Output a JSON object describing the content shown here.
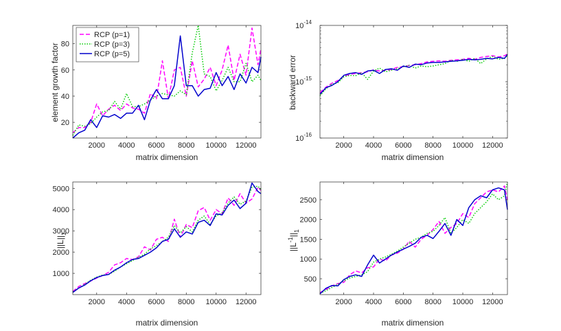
{
  "figure": {
    "background": "#ffffff"
  },
  "chart_data": [
    {
      "id": "growth",
      "type": "line",
      "xlabel": "matrix dimension",
      "ylabel": "element growth factor",
      "xlim": [
        400,
        13000
      ],
      "ylim": [
        8,
        94
      ],
      "yscale": "linear",
      "xticks": [
        2000,
        4000,
        6000,
        8000,
        10000,
        12000
      ],
      "xtick_labels": [
        "2000",
        "4000",
        "6000",
        "8000",
        "10000",
        "12000"
      ],
      "yticks": [
        20,
        40,
        60,
        80
      ],
      "ytick_labels": [
        "20",
        "40",
        "60",
        "80"
      ],
      "legend": {
        "position": "top-left",
        "entries": [
          "RCP (p=1)",
          "RCP (p=3)",
          "RCP (p=5)"
        ]
      },
      "series": [
        {
          "name": "RCP (p=1)",
          "color": "#ff00ff",
          "dash": "dashed",
          "x": [
            400,
            800,
            1200,
            1600,
            2000,
            2400,
            2800,
            3200,
            3600,
            4000,
            4400,
            4800,
            5200,
            5600,
            6000,
            6400,
            6800,
            7200,
            7600,
            8000,
            8400,
            8800,
            9200,
            9600,
            10000,
            10400,
            10800,
            11200,
            11600,
            12000,
            12400,
            12800,
            13000
          ],
          "values": [
            12,
            16,
            16,
            20,
            34,
            25,
            30,
            33,
            29,
            34,
            31,
            30,
            27,
            42,
            38,
            67,
            38,
            60,
            62,
            40,
            67,
            47,
            53,
            62,
            48,
            60,
            79,
            52,
            72,
            56,
            92,
            64,
            76
          ]
        },
        {
          "name": "RCP (p=3)",
          "color": "#00cc00",
          "dash": "dotted",
          "x": [
            400,
            800,
            1200,
            1600,
            2000,
            2400,
            2800,
            3200,
            3600,
            4000,
            4400,
            4800,
            5200,
            5600,
            6000,
            6400,
            6800,
            7200,
            7600,
            8000,
            8400,
            8800,
            9200,
            9600,
            10000,
            10400,
            10800,
            11200,
            11600,
            12000,
            12400,
            12800,
            13000
          ],
          "values": [
            10,
            18,
            17,
            19,
            24,
            28,
            29,
            36,
            30,
            42,
            32,
            32,
            34,
            37,
            40,
            42,
            41,
            40,
            44,
            41,
            73,
            94,
            57,
            55,
            44,
            52,
            62,
            51,
            51,
            65,
            51,
            56,
            52
          ]
        },
        {
          "name": "RCP (p=5)",
          "color": "#0000cc",
          "dash": "solid",
          "x": [
            400,
            800,
            1200,
            1600,
            2000,
            2400,
            2800,
            3200,
            3600,
            4000,
            4400,
            4800,
            5200,
            5600,
            6000,
            6400,
            6800,
            7200,
            7600,
            8000,
            8400,
            8800,
            9200,
            9600,
            10000,
            10400,
            10800,
            11200,
            11600,
            12000,
            12400,
            12800,
            13000
          ],
          "values": [
            8,
            12,
            14,
            22,
            16,
            25,
            24,
            26,
            23,
            27,
            27,
            33,
            22,
            37,
            45,
            38,
            38,
            48,
            86,
            48,
            48,
            40,
            45,
            46,
            58,
            48,
            55,
            45,
            57,
            50,
            62,
            58,
            70
          ]
        }
      ]
    },
    {
      "id": "backward",
      "type": "line",
      "xlabel": "matrix dimension",
      "ylabel": "backward error",
      "xlim": [
        400,
        13000
      ],
      "ylim": [
        1e-16,
        1e-14
      ],
      "yscale": "log",
      "xticks": [
        2000,
        4000,
        6000,
        8000,
        10000,
        12000
      ],
      "xtick_labels": [
        "2000",
        "4000",
        "6000",
        "8000",
        "10000",
        "12000"
      ],
      "yticks": [
        1e-16,
        1e-15,
        1e-14
      ],
      "ytick_bases": [
        "10",
        "10",
        "10"
      ],
      "ytick_exponents": [
        "-16",
        "-15",
        "-14"
      ],
      "series": [
        {
          "name": "RCP (p=1)",
          "color": "#ff00ff",
          "dash": "dashed",
          "x": [
            400,
            800,
            1200,
            1600,
            2000,
            2400,
            2800,
            3200,
            3600,
            4000,
            4400,
            4800,
            5200,
            5600,
            6000,
            6400,
            6800,
            7200,
            7600,
            8000,
            8400,
            8800,
            9200,
            9600,
            10000,
            10400,
            10800,
            11200,
            11600,
            12000,
            12400,
            12800,
            13000
          ],
          "values": [
            6.4e-16,
            8e-16,
            9.4e-16,
            1.05e-15,
            1.25e-15,
            1.35e-15,
            1.4e-15,
            1.45e-15,
            1.5e-15,
            1.62e-15,
            1.55e-15,
            1.6e-15,
            1.65e-15,
            1.8e-15,
            1.85e-15,
            1.95e-15,
            2e-15,
            2.1e-15,
            2.25e-15,
            2.3e-15,
            2.35e-15,
            2.3e-15,
            2.4e-15,
            2.45e-15,
            2.5e-15,
            2.6e-15,
            2.5e-15,
            2.7e-15,
            2.8e-15,
            2.9e-15,
            2.75e-15,
            2.9e-15,
            3.1e-15
          ]
        },
        {
          "name": "RCP (p=3)",
          "color": "#00cc00",
          "dash": "dotted",
          "x": [
            400,
            800,
            1200,
            1600,
            2000,
            2400,
            2800,
            3200,
            3600,
            4000,
            4400,
            4800,
            5200,
            5600,
            6000,
            6400,
            6800,
            7200,
            7600,
            8000,
            8400,
            8800,
            9200,
            9600,
            10000,
            10400,
            10800,
            11200,
            11600,
            12000,
            12400,
            12800,
            13000
          ],
          "values": [
            5.6e-16,
            7.5e-16,
            9e-16,
            9.6e-16,
            1.22e-15,
            1.3e-15,
            1.28e-15,
            1.45e-15,
            1.1e-15,
            1.55e-15,
            1.75e-15,
            1.5e-15,
            1.6e-15,
            1.7e-15,
            1.85e-15,
            1.95e-15,
            1.75e-15,
            1.9e-15,
            1.85e-15,
            1.9e-15,
            2e-15,
            2.1e-15,
            2.4e-15,
            2.3e-15,
            2.5e-15,
            2.3e-15,
            2.6e-15,
            2.1e-15,
            2.55e-15,
            2.8e-15,
            2.5e-15,
            2.6e-15,
            2.9e-15
          ]
        },
        {
          "name": "RCP (p=5)",
          "color": "#0000cc",
          "dash": "solid",
          "x": [
            400,
            800,
            1200,
            1600,
            2000,
            2400,
            2800,
            3200,
            3600,
            4000,
            4400,
            4800,
            5200,
            5600,
            6000,
            6400,
            6800,
            7200,
            7600,
            8000,
            8400,
            8800,
            9200,
            9600,
            10000,
            10400,
            10800,
            11200,
            11600,
            12000,
            12400,
            12800,
            13000
          ],
          "values": [
            6e-16,
            7.8e-16,
            8.6e-16,
            1e-15,
            1.3e-15,
            1.4e-15,
            1.45e-15,
            1.35e-15,
            1.55e-15,
            1.6e-15,
            1.4e-15,
            1.65e-15,
            1.7e-15,
            1.6e-15,
            1.9e-15,
            1.8e-15,
            2.05e-15,
            2e-15,
            2.15e-15,
            2.2e-15,
            2.2e-15,
            2.25e-15,
            2.3e-15,
            2.35e-15,
            2.4e-15,
            2.5e-15,
            2.45e-15,
            2.5e-15,
            2.6e-15,
            2.55e-15,
            2.7e-15,
            2.6e-15,
            3.05e-15
          ]
        }
      ]
    },
    {
      "id": "normL",
      "type": "line",
      "xlabel": "matrix dimension",
      "ylabel_main": "||L||",
      "ylabel_sub": "1",
      "xlim": [
        400,
        13000
      ],
      "ylim": [
        0,
        5300
      ],
      "yscale": "linear",
      "xticks": [
        2000,
        4000,
        6000,
        8000,
        10000,
        12000
      ],
      "xtick_labels": [
        "2000",
        "4000",
        "6000",
        "8000",
        "10000",
        "12000"
      ],
      "yticks": [
        1000,
        2000,
        3000,
        4000,
        5000
      ],
      "ytick_labels": [
        "1000",
        "2000",
        "3000",
        "4000",
        "5000"
      ],
      "series": [
        {
          "name": "RCP (p=1)",
          "color": "#ff00ff",
          "dash": "dashed",
          "x": [
            400,
            800,
            1200,
            1600,
            2000,
            2400,
            2800,
            3200,
            3600,
            4000,
            4400,
            4800,
            5200,
            5600,
            6000,
            6400,
            6800,
            7200,
            7600,
            8000,
            8400,
            8800,
            9200,
            9600,
            10000,
            10400,
            10800,
            11200,
            11600,
            12000,
            12400,
            12800,
            13000
          ],
          "values": [
            150,
            380,
            520,
            640,
            780,
            900,
            1050,
            1400,
            1500,
            1700,
            1650,
            1780,
            2250,
            2100,
            2600,
            2700,
            2500,
            3550,
            2700,
            3300,
            3150,
            3950,
            4100,
            3500,
            4000,
            3800,
            4550,
            4200,
            4750,
            4300,
            4500,
            5050,
            4900
          ]
        },
        {
          "name": "RCP (p=3)",
          "color": "#00cc00",
          "dash": "dotted",
          "x": [
            400,
            800,
            1200,
            1600,
            2000,
            2400,
            2800,
            3200,
            3600,
            4000,
            4400,
            4800,
            5200,
            5600,
            6000,
            6400,
            6800,
            7200,
            7600,
            8000,
            8400,
            8800,
            9200,
            9600,
            10000,
            10400,
            10800,
            11200,
            11600,
            12000,
            12400,
            12800,
            13000
          ],
          "values": [
            130,
            300,
            480,
            680,
            820,
            920,
            950,
            1100,
            1300,
            1450,
            1600,
            1750,
            1900,
            2150,
            2300,
            2500,
            2700,
            3250,
            2900,
            3200,
            2950,
            3500,
            3700,
            3300,
            3700,
            3850,
            4300,
            4600,
            4250,
            4400,
            5050,
            5100,
            4950
          ]
        },
        {
          "name": "RCP (p=5)",
          "color": "#0000cc",
          "dash": "solid",
          "x": [
            400,
            800,
            1200,
            1600,
            2000,
            2400,
            2800,
            3200,
            3600,
            4000,
            4400,
            4800,
            5200,
            5600,
            6000,
            6400,
            6800,
            7200,
            7600,
            8000,
            8400,
            8800,
            9200,
            9600,
            10000,
            10400,
            10800,
            11200,
            11600,
            12000,
            12400,
            12800,
            13000
          ],
          "values": [
            100,
            310,
            450,
            650,
            800,
            900,
            950,
            1150,
            1300,
            1500,
            1650,
            1700,
            1850,
            2000,
            2200,
            2500,
            2600,
            3100,
            2700,
            2950,
            2850,
            3400,
            3500,
            3250,
            3800,
            3750,
            4200,
            4450,
            4050,
            4300,
            5250,
            4850,
            4750
          ]
        }
      ]
    },
    {
      "id": "normLinv",
      "type": "line",
      "xlabel": "matrix dimension",
      "ylabel_main": "||L",
      "ylabel_sup": "-1",
      "ylabel_end": "||",
      "ylabel_sub": "1",
      "xlim": [
        400,
        13000
      ],
      "ylim": [
        100,
        2950
      ],
      "yscale": "linear",
      "xticks": [
        2000,
        4000,
        6000,
        8000,
        10000,
        12000
      ],
      "xtick_labels": [
        "2000",
        "4000",
        "6000",
        "8000",
        "10000",
        "12000"
      ],
      "yticks": [
        500,
        1000,
        1500,
        2000,
        2500
      ],
      "ytick_labels": [
        "500",
        "1000",
        "1500",
        "2000",
        "2500"
      ],
      "series": [
        {
          "name": "RCP (p=1)",
          "color": "#ff00ff",
          "dash": "dashed",
          "x": [
            400,
            800,
            1200,
            1600,
            2000,
            2400,
            2800,
            3200,
            3600,
            4000,
            4400,
            4800,
            5200,
            5600,
            6000,
            6400,
            6800,
            7200,
            7600,
            8000,
            8400,
            8800,
            9200,
            9600,
            10000,
            10400,
            10800,
            11200,
            11600,
            12000,
            12400,
            12800,
            13000
          ],
          "values": [
            150,
            230,
            320,
            380,
            410,
            600,
            700,
            650,
            780,
            800,
            1000,
            950,
            1100,
            1150,
            1250,
            1450,
            1300,
            1500,
            1600,
            1750,
            1950,
            1650,
            1800,
            1900,
            2150,
            2050,
            2400,
            2550,
            2700,
            2750,
            2700,
            2850,
            2500
          ]
        },
        {
          "name": "RCP (p=3)",
          "color": "#00cc00",
          "dash": "dotted",
          "x": [
            400,
            800,
            1200,
            1600,
            2000,
            2400,
            2800,
            3200,
            3600,
            4000,
            4400,
            4800,
            5200,
            5600,
            6000,
            6400,
            6800,
            7200,
            7600,
            8000,
            8400,
            8800,
            9200,
            9600,
            10000,
            10400,
            10800,
            11200,
            11600,
            12000,
            12400,
            12800,
            13000
          ],
          "values": [
            130,
            200,
            280,
            360,
            450,
            520,
            560,
            600,
            680,
            920,
            1000,
            1050,
            1120,
            1200,
            1300,
            1400,
            1500,
            1550,
            1650,
            1700,
            1850,
            2050,
            1650,
            1800,
            2000,
            1900,
            2150,
            2300,
            2450,
            2650,
            2500,
            2600,
            2950
          ]
        },
        {
          "name": "RCP (p=5)",
          "color": "#0000cc",
          "dash": "solid",
          "x": [
            400,
            800,
            1200,
            1600,
            2000,
            2400,
            2800,
            3200,
            3600,
            4000,
            4400,
            4800,
            5200,
            5600,
            6000,
            6400,
            6800,
            7200,
            7600,
            8000,
            8400,
            8800,
            9200,
            9600,
            10000,
            10400,
            10800,
            11200,
            11600,
            12000,
            12400,
            12800,
            13000
          ],
          "values": [
            120,
            260,
            330,
            320,
            480,
            560,
            600,
            560,
            850,
            1100,
            900,
            1000,
            1100,
            1180,
            1250,
            1320,
            1400,
            1550,
            1600,
            1520,
            1700,
            1900,
            1600,
            2000,
            1850,
            2300,
            2500,
            2600,
            2550,
            2750,
            2800,
            2750,
            2250
          ]
        }
      ]
    }
  ]
}
